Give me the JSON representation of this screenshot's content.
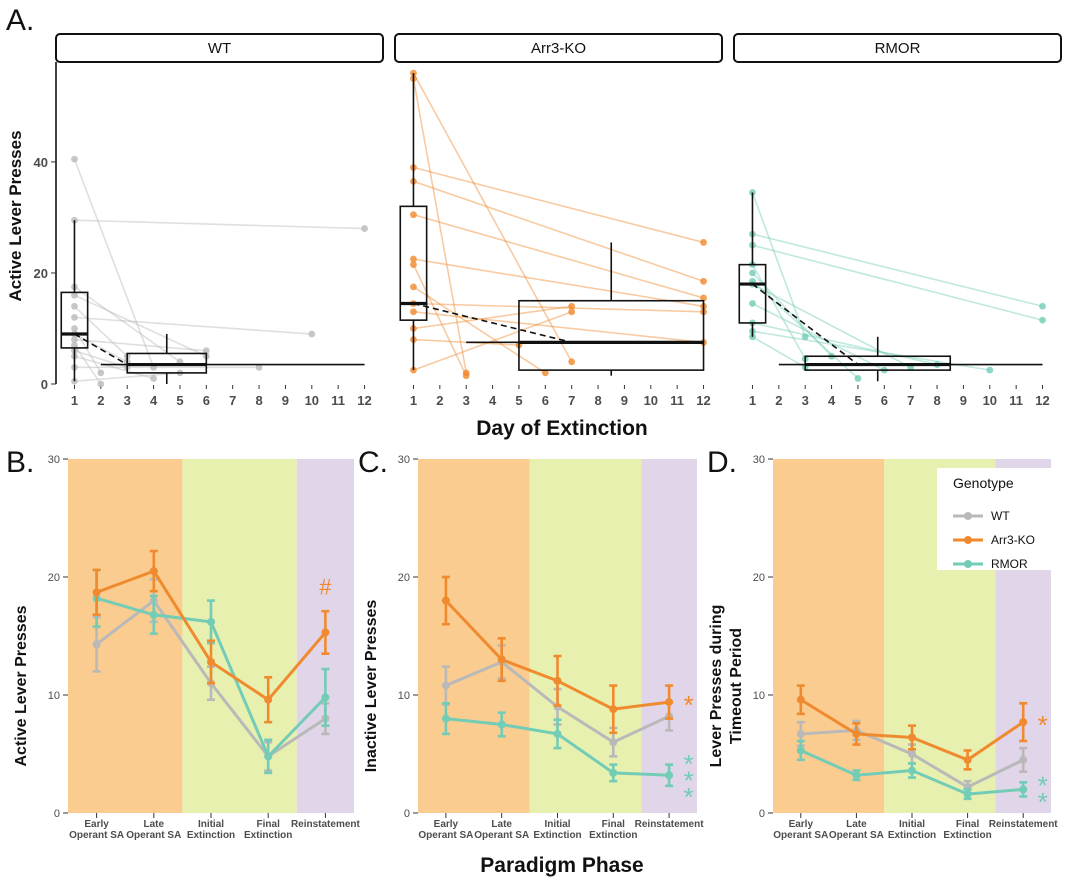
{
  "figure": {
    "panel_a_letter": "A.",
    "panel_b_letter": "B.",
    "panel_c_letter": "C.",
    "panel_d_letter": "D.",
    "x_title_a": "Day of Extinction",
    "x_title_bottom": "Paradigm Phase"
  },
  "colors": {
    "WT": "#b9b9b9",
    "Arr3-KO": "#f08a2e",
    "RMOR": "#72ccb6",
    "phase_sa": "#fbcc8f",
    "phase_ext": "#e8f0b0",
    "phase_rein": "#e1d5ea"
  },
  "chart_data": [
    {
      "type": "box",
      "id": "A",
      "ylabel": "Active Lever Presses",
      "xlabel": "Day of Extinction",
      "ylim": [
        0,
        58
      ],
      "xlim": [
        0.3,
        12.7
      ],
      "y_ticks": [
        0,
        20,
        40
      ],
      "x_ticks": [
        1,
        2,
        3,
        4,
        5,
        6,
        7,
        8,
        9,
        10,
        11,
        12
      ],
      "facets": [
        {
          "label": "WT",
          "color_key": "WT",
          "subjects": [
            [
              [
                1,
                40.5
              ],
              [
                4,
                3
              ]
            ],
            [
              [
                1,
                29.5
              ],
              [
                12,
                28
              ]
            ],
            [
              [
                1,
                17.5
              ],
              [
                5,
                4
              ]
            ],
            [
              [
                1,
                16
              ],
              [
                6,
                5
              ]
            ],
            [
              [
                1,
                14
              ],
              [
                3,
                5
              ]
            ],
            [
              [
                1,
                12
              ],
              [
                10,
                9
              ]
            ],
            [
              [
                1,
                10
              ],
              [
                2,
                2
              ]
            ],
            [
              [
                1,
                9
              ],
              [
                3,
                4
              ]
            ],
            [
              [
                1,
                8
              ],
              [
                6,
                6
              ]
            ],
            [
              [
                1,
                7
              ],
              [
                2,
                0
              ]
            ],
            [
              [
                1,
                6
              ],
              [
                3,
                3
              ]
            ],
            [
              [
                1,
                5
              ],
              [
                4,
                1
              ]
            ],
            [
              [
                1,
                3
              ],
              [
                8,
                3
              ]
            ],
            [
              [
                1,
                0.5
              ],
              [
                5,
                2
              ]
            ]
          ],
          "boxes": [
            {
              "x": 1,
              "width": 1.0,
              "q1": 6.5,
              "median": 9,
              "q3": 16.5,
              "lo": 0.5,
              "hi": 29.5
            },
            {
              "x": 4.5,
              "width": 3.0,
              "q1": 2,
              "median": 3.5,
              "q3": 5.5,
              "lo": 0,
              "hi": 9
            }
          ],
          "span_lines": [
            {
              "x1": 2,
              "x2": 12,
              "y": 3.5
            }
          ],
          "mean_path": [
            [
              1,
              9
            ],
            [
              3,
              3.5
            ]
          ]
        },
        {
          "label": "Arr3-KO",
          "color_key": "Arr3-KO",
          "subjects": [
            [
              [
                1,
                56
              ],
              [
                7,
                4
              ]
            ],
            [
              [
                1,
                55
              ],
              [
                3,
                2
              ]
            ],
            [
              [
                1,
                39
              ],
              [
                12,
                25.5
              ]
            ],
            [
              [
                1,
                36.5
              ],
              [
                12,
                18.5
              ]
            ],
            [
              [
                1,
                30.5
              ],
              [
                12,
                15.5
              ]
            ],
            [
              [
                1,
                22.5
              ],
              [
                12,
                14
              ]
            ],
            [
              [
                1,
                21.5
              ],
              [
                3,
                1.5
              ]
            ],
            [
              [
                1,
                17.5
              ],
              [
                6,
                2
              ]
            ],
            [
              [
                1,
                14.5
              ],
              [
                12,
                13
              ]
            ],
            [
              [
                1,
                13
              ],
              [
                12,
                7.5
              ]
            ],
            [
              [
                1,
                10
              ],
              [
                7,
                14
              ]
            ],
            [
              [
                1,
                8
              ],
              [
                5,
                7
              ]
            ],
            [
              [
                1,
                2.5
              ],
              [
                7,
                13
              ]
            ]
          ],
          "boxes": [
            {
              "x": 1,
              "width": 1.0,
              "q1": 11.5,
              "median": 14.5,
              "q3": 32,
              "lo": 2.5,
              "hi": 56
            },
            {
              "x": 8.5,
              "width": 7.0,
              "q1": 2.5,
              "median": 7.5,
              "q3": 15,
              "lo": 1.5,
              "hi": 25.5
            }
          ],
          "span_lines": [
            {
              "x1": 3,
              "x2": 12,
              "y": 7.5
            }
          ],
          "mean_path": [
            [
              1,
              14.5
            ],
            [
              7,
              7.5
            ]
          ]
        },
        {
          "label": "RMOR",
          "color_key": "RMOR",
          "subjects": [
            [
              [
                1,
                34.5
              ],
              [
                3,
                8.5
              ]
            ],
            [
              [
                1,
                27
              ],
              [
                12,
                14
              ]
            ],
            [
              [
                1,
                25
              ],
              [
                12,
                11.5
              ]
            ],
            [
              [
                1,
                21.5
              ],
              [
                3,
                4.5
              ]
            ],
            [
              [
                1,
                20
              ],
              [
                4,
                5
              ]
            ],
            [
              [
                1,
                18.5
              ],
              [
                5,
                1
              ]
            ],
            [
              [
                1,
                18
              ],
              [
                7,
                3
              ]
            ],
            [
              [
                1,
                14.5
              ],
              [
                6,
                2.5
              ]
            ],
            [
              [
                1,
                11
              ],
              [
                8,
                3.5
              ]
            ],
            [
              [
                1,
                9.5
              ],
              [
                10,
                2.5
              ]
            ],
            [
              [
                1,
                8.5
              ],
              [
                3,
                3
              ]
            ]
          ],
          "boxes": [
            {
              "x": 1,
              "width": 1.0,
              "q1": 11,
              "median": 18,
              "q3": 21.5,
              "lo": 8.5,
              "hi": 34.5
            },
            {
              "x": 5.75,
              "width": 5.5,
              "q1": 2.5,
              "median": 3.5,
              "q3": 5,
              "lo": 0.5,
              "hi": 8.5
            }
          ],
          "span_lines": [
            {
              "x1": 2,
              "x2": 12,
              "y": 3.5
            }
          ],
          "mean_path": [
            [
              1,
              18
            ],
            [
              5,
              3.5
            ]
          ]
        }
      ]
    },
    {
      "type": "line",
      "id": "B",
      "ylabel": "Active Lever Presses",
      "ylim": [
        0,
        30
      ],
      "y_ticks": [
        0,
        10,
        20,
        30
      ],
      "categories": [
        "Early Operant SA",
        "Late Operant SA",
        "Initial Extinction",
        "Final Extinction",
        "Reinstatement"
      ],
      "phase_bands": [
        [
          "phase_sa",
          0.5,
          2.5
        ],
        [
          "phase_ext",
          2.5,
          4.5
        ],
        [
          "phase_rein",
          4.5,
          5.5
        ]
      ],
      "series": [
        {
          "name": "WT",
          "values": [
            14.3,
            18.0,
            11.0,
            4.8,
            8.0
          ],
          "errors": [
            2.3,
            1.8,
            1.4,
            1.2,
            1.3
          ]
        },
        {
          "name": "Arr3-KO",
          "values": [
            18.7,
            20.5,
            12.8,
            9.6,
            15.3
          ],
          "errors": [
            1.9,
            1.7,
            1.8,
            1.9,
            1.8
          ]
        },
        {
          "name": "RMOR",
          "values": [
            18.2,
            16.8,
            16.2,
            4.8,
            9.8
          ],
          "errors": [
            2.4,
            1.6,
            1.8,
            1.4,
            2.4
          ]
        }
      ],
      "annotations": [
        {
          "text": "#",
          "x": 5,
          "y": 18.5,
          "color_key": "Arr3-KO"
        }
      ]
    },
    {
      "type": "line",
      "id": "C",
      "ylabel": "Inactive Lever Presses",
      "ylim": [
        0,
        30
      ],
      "y_ticks": [
        0,
        10,
        20,
        30
      ],
      "categories": [
        "Early Operant SA",
        "Late Operant SA",
        "Initial Extinction",
        "Final Extinction",
        "Reinstatement"
      ],
      "phase_bands": [
        [
          "phase_sa",
          0.5,
          2.5
        ],
        [
          "phase_ext",
          2.5,
          4.5
        ],
        [
          "phase_rein",
          4.5,
          5.5
        ]
      ],
      "series": [
        {
          "name": "WT",
          "values": [
            10.8,
            12.8,
            9.0,
            6.0,
            8.2
          ],
          "errors": [
            1.6,
            1.4,
            1.5,
            1.2,
            1.2
          ]
        },
        {
          "name": "Arr3-KO",
          "values": [
            18.0,
            13.0,
            11.2,
            8.8,
            9.4
          ],
          "errors": [
            2.0,
            1.8,
            2.1,
            2.0,
            1.4
          ]
        },
        {
          "name": "RMOR",
          "values": [
            8.0,
            7.5,
            6.7,
            3.4,
            3.2
          ],
          "errors": [
            1.3,
            1.0,
            1.2,
            0.7,
            0.9
          ]
        }
      ],
      "annotations": [
        {
          "text": "*",
          "x": 5.35,
          "y": 9.4,
          "color_key": "Arr3-KO"
        },
        {
          "text": "*",
          "x": 5.35,
          "y": 4.4,
          "color_key": "RMOR"
        },
        {
          "text": "*",
          "x": 5.35,
          "y": 3.0,
          "color_key": "RMOR"
        },
        {
          "text": "*",
          "x": 5.35,
          "y": 1.6,
          "color_key": "RMOR"
        }
      ]
    },
    {
      "type": "line",
      "id": "D",
      "ylabel": "Lever Presses during Timeout Period",
      "ylabel_lines": [
        "Lever Presses during",
        "Timeout Period"
      ],
      "ylim": [
        0,
        30
      ],
      "y_ticks": [
        0,
        10,
        20,
        30
      ],
      "categories": [
        "Early Operant SA",
        "Late Operant SA",
        "Initial Extinction",
        "Final Extinction",
        "Reinstatement"
      ],
      "phase_bands": [
        [
          "phase_sa",
          0.5,
          2.5
        ],
        [
          "phase_ext",
          2.5,
          4.5
        ],
        [
          "phase_rein",
          4.5,
          5.5
        ]
      ],
      "series": [
        {
          "name": "WT",
          "values": [
            6.7,
            7.0,
            5.0,
            2.2,
            4.5
          ],
          "errors": [
            1.0,
            0.8,
            0.8,
            0.5,
            1.0
          ]
        },
        {
          "name": "Arr3-KO",
          "values": [
            9.6,
            6.7,
            6.4,
            4.5,
            7.7
          ],
          "errors": [
            1.2,
            0.9,
            1.0,
            0.8,
            1.6
          ]
        },
        {
          "name": "RMOR",
          "values": [
            5.3,
            3.2,
            3.6,
            1.6,
            2.0
          ],
          "errors": [
            0.8,
            0.4,
            0.6,
            0.4,
            0.6
          ]
        }
      ],
      "annotations": [
        {
          "text": "*",
          "x": 5.35,
          "y": 7.7,
          "color_key": "Arr3-KO"
        },
        {
          "text": "*",
          "x": 5.35,
          "y": 2.6,
          "color_key": "RMOR"
        },
        {
          "text": "*",
          "x": 5.35,
          "y": 1.2,
          "color_key": "RMOR"
        }
      ],
      "legend": {
        "title": "Genotype",
        "position": "top-right",
        "entries": [
          "WT",
          "Arr3-KO",
          "RMOR"
        ]
      }
    }
  ]
}
